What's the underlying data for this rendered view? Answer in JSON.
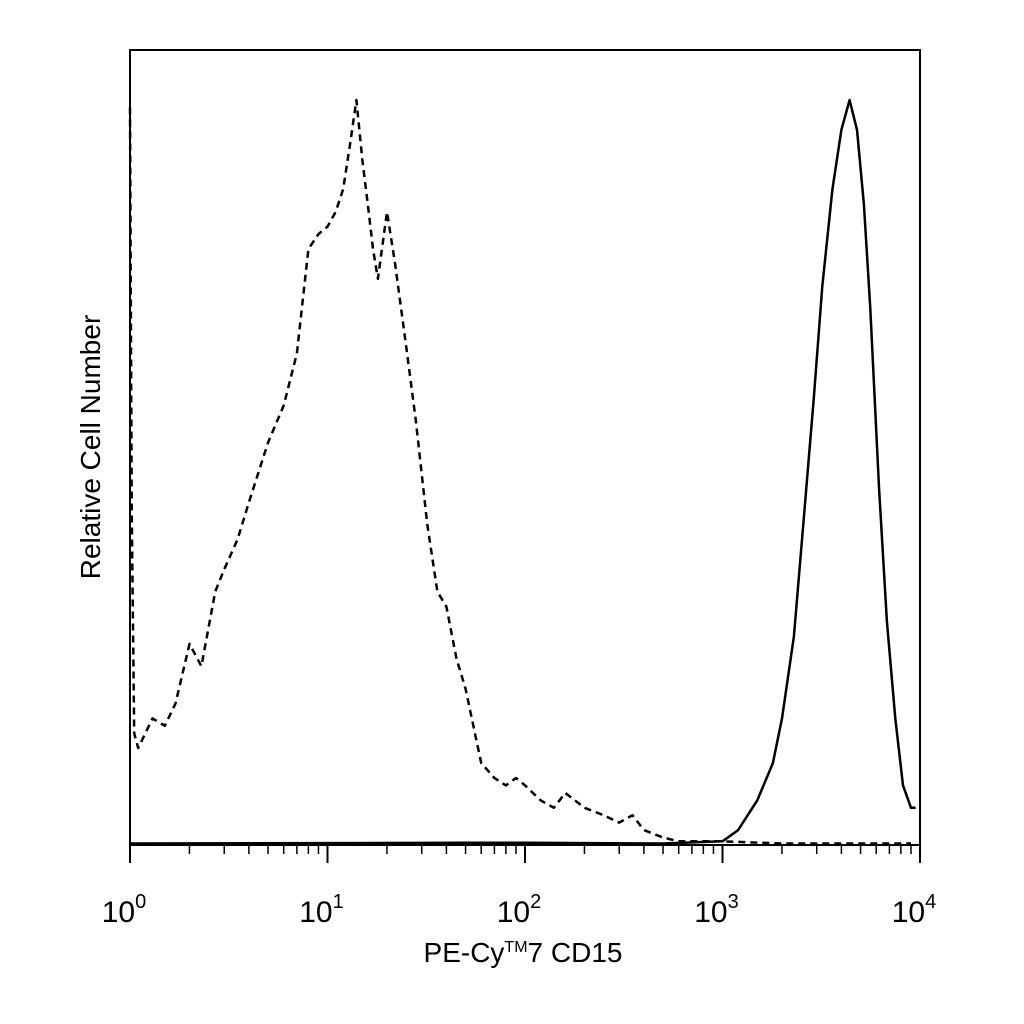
{
  "chart_data": {
    "type": "line",
    "xlabel": {
      "prefix": "PE-Cy",
      "tm": "TM",
      "suffix": "7 CD15"
    },
    "ylabel": "Relative Cell Number",
    "xscale": "log",
    "xlim": [
      1,
      10000
    ],
    "ylim": [
      0,
      100
    ],
    "grid": false,
    "legend": "none",
    "x_ticks": [
      {
        "base": "10",
        "exp": "0",
        "value": 1
      },
      {
        "base": "10",
        "exp": "1",
        "value": 10
      },
      {
        "base": "10",
        "exp": "2",
        "value": 100
      },
      {
        "base": "10",
        "exp": "3",
        "value": 1000
      },
      {
        "base": "10",
        "exp": "4",
        "value": 10000
      }
    ],
    "series": [
      {
        "style": "dashed",
        "color": "#000000",
        "points": [
          [
            1.0,
            99
          ],
          [
            1.02,
            45
          ],
          [
            1.05,
            15
          ],
          [
            1.1,
            13
          ],
          [
            1.3,
            17
          ],
          [
            1.5,
            16
          ],
          [
            1.7,
            19
          ],
          [
            2.0,
            27
          ],
          [
            2.3,
            24
          ],
          [
            2.7,
            34
          ],
          [
            3.0,
            37
          ],
          [
            3.5,
            41
          ],
          [
            4.0,
            46
          ],
          [
            5.0,
            54
          ],
          [
            6.0,
            59
          ],
          [
            7.0,
            66
          ],
          [
            8.0,
            80
          ],
          [
            9.0,
            82
          ],
          [
            10.0,
            83
          ],
          [
            11.0,
            85
          ],
          [
            12.0,
            88
          ],
          [
            13.0,
            94
          ],
          [
            14.0,
            100
          ],
          [
            15.0,
            92
          ],
          [
            16.0,
            86
          ],
          [
            17.0,
            80
          ],
          [
            18.0,
            76
          ],
          [
            20.0,
            85
          ],
          [
            22.0,
            78
          ],
          [
            25.0,
            67
          ],
          [
            28.0,
            57
          ],
          [
            32.0,
            43
          ],
          [
            36.0,
            34
          ],
          [
            40.0,
            32
          ],
          [
            45.0,
            25
          ],
          [
            50.0,
            21
          ],
          [
            60.0,
            11
          ],
          [
            70.0,
            9
          ],
          [
            80.0,
            8
          ],
          [
            90.0,
            9
          ],
          [
            100.0,
            8
          ],
          [
            120.0,
            6
          ],
          [
            140.0,
            5
          ],
          [
            160.0,
            7
          ],
          [
            200.0,
            5
          ],
          [
            250.0,
            4
          ],
          [
            300.0,
            3
          ],
          [
            350.0,
            4
          ],
          [
            400.0,
            2
          ],
          [
            500.0,
            1
          ],
          [
            600.0,
            0.5
          ],
          [
            800.0,
            0.5
          ],
          [
            1000.0,
            0.5
          ],
          [
            2000.0,
            0.2
          ],
          [
            9000.0,
            0.2
          ]
        ]
      },
      {
        "style": "solid",
        "color": "#000000",
        "points": [
          [
            1.0,
            0.2
          ],
          [
            50.0,
            0.3
          ],
          [
            100.0,
            0.3
          ],
          [
            500.0,
            0.2
          ],
          [
            1000.0,
            0.5
          ],
          [
            1200.0,
            2
          ],
          [
            1500.0,
            6
          ],
          [
            1800.0,
            11
          ],
          [
            2000.0,
            17
          ],
          [
            2300.0,
            28
          ],
          [
            2600.0,
            45
          ],
          [
            2900.0,
            60
          ],
          [
            3200.0,
            75
          ],
          [
            3600.0,
            88
          ],
          [
            4000.0,
            96
          ],
          [
            4400.0,
            100
          ],
          [
            4800.0,
            96
          ],
          [
            5200.0,
            86
          ],
          [
            5600.0,
            72
          ],
          [
            6200.0,
            48
          ],
          [
            6800.0,
            30
          ],
          [
            7500.0,
            17
          ],
          [
            8200.0,
            8
          ],
          [
            9000.0,
            5
          ],
          [
            9500.0,
            5
          ]
        ]
      }
    ]
  }
}
